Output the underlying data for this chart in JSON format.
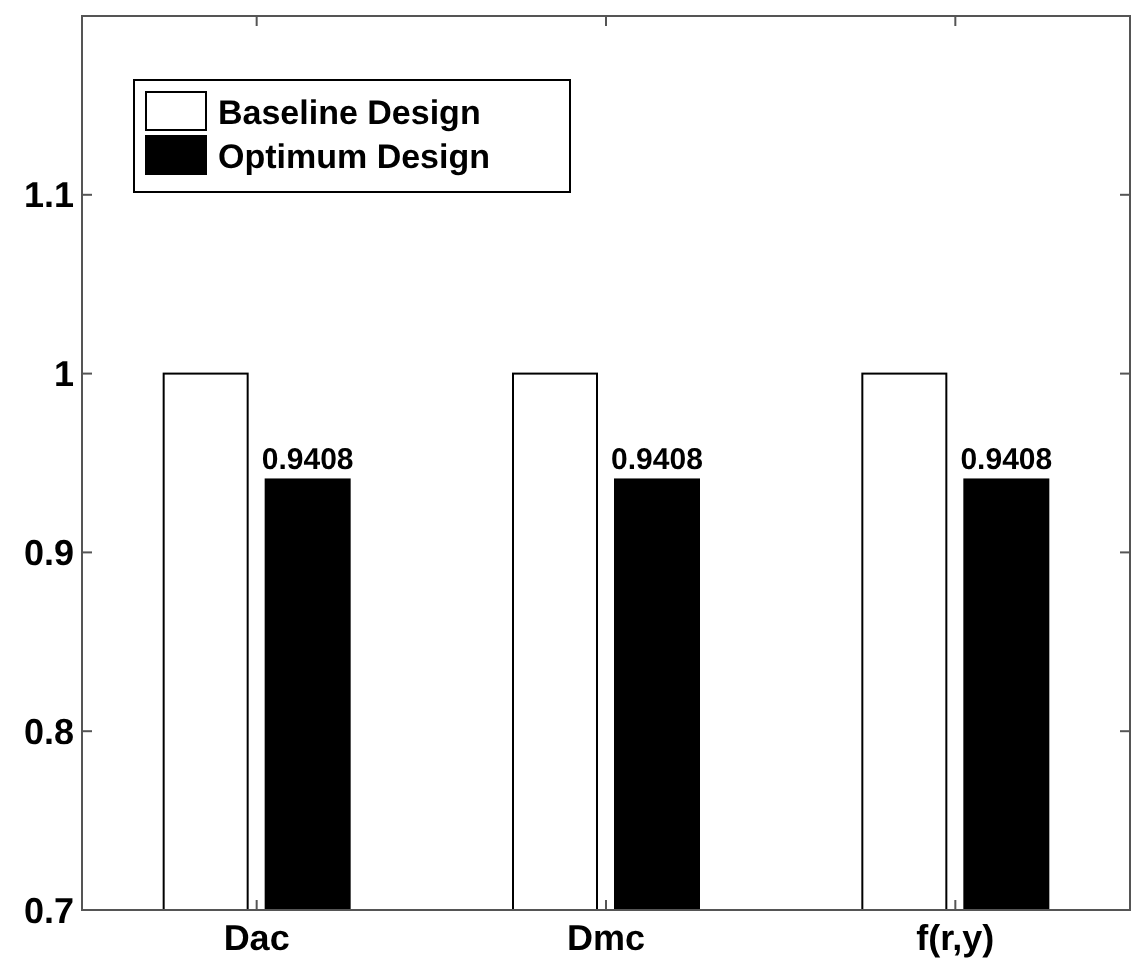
{
  "chart_data": {
    "type": "bar",
    "categories": [
      "Dac",
      "Dmc",
      "f(r,y)"
    ],
    "series": [
      {
        "name": "Baseline Design",
        "color": "#ffffff",
        "values": [
          1,
          1,
          1
        ]
      },
      {
        "name": "Optimum Design",
        "color": "#000000",
        "values": [
          0.9408,
          0.9408,
          0.9408
        ],
        "value_labels": [
          "0.9408",
          "0.9408",
          "0.9408"
        ]
      }
    ],
    "ylim": [
      0.7,
      1.2
    ],
    "yticks": [
      0.7,
      0.8,
      0.9,
      1,
      1.1
    ],
    "legend": "top left",
    "grid": false
  }
}
